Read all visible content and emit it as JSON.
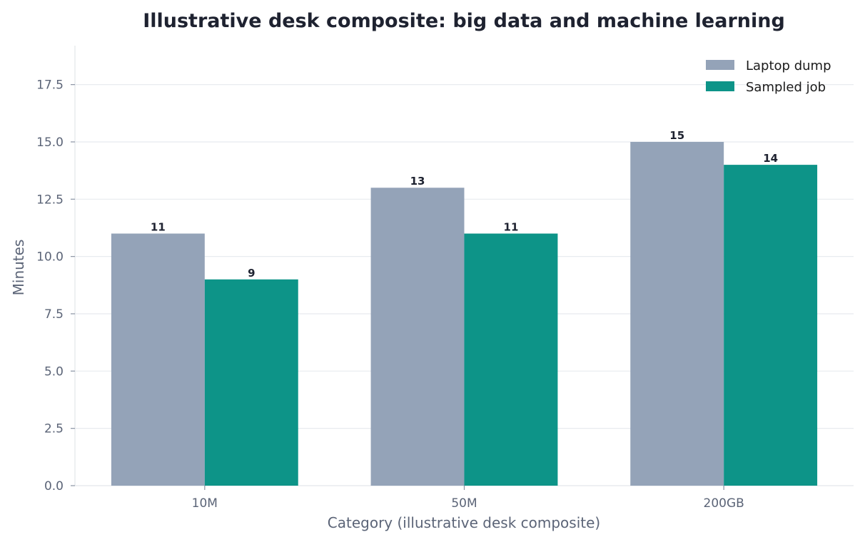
{
  "chart_data": {
    "type": "bar",
    "title": "Illustrative desk composite: big data and machine learning",
    "xlabel": "Category (illustrative desk composite)",
    "ylabel": "Minutes",
    "categories": [
      "10M",
      "50M",
      "200GB"
    ],
    "series": [
      {
        "name": "Laptop dump",
        "values": [
          11,
          13,
          15
        ],
        "color": "#94a3b8"
      },
      {
        "name": "Sampled job",
        "values": [
          9,
          11,
          14
        ],
        "color": "#0d9488"
      }
    ],
    "ylim": [
      0,
      19.2
    ],
    "yticks": [
      "0.0",
      "2.5",
      "5.0",
      "7.5",
      "10.0",
      "12.5",
      "15.0",
      "17.5"
    ],
    "grid": true,
    "legend_position": "top-right"
  }
}
